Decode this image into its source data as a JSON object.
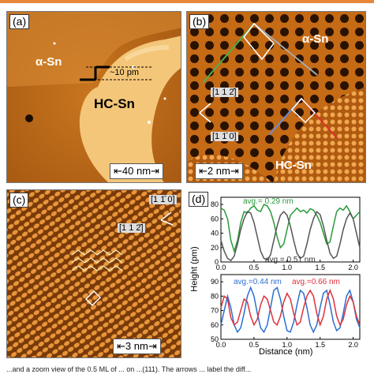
{
  "panel_a": {
    "label": "(a)",
    "region_left": "α-Sn",
    "region_center": "HC-Sn",
    "step_height": "~10 pm",
    "scale": "40 nm"
  },
  "panel_b": {
    "label": "(b)",
    "region_top": "α-Sn",
    "region_bottom": "HC-Sn",
    "dir1": "[1 1 2̄]",
    "dir2": "[1 1̄ 0]",
    "scale": "2 nm"
  },
  "panel_c": {
    "label": "(c)",
    "dir1": "[1 1̄ 0]",
    "dir2": "[1 1 2̄]",
    "scale": "3 nm"
  },
  "panel_d": {
    "label": "(d)",
    "ylabel": "Height (pm)",
    "xlabel": "Distance (nm)",
    "top_annot_green": "avg.= 0.29 nm",
    "top_annot_gray": "avg.= 0.51 nm",
    "bot_annot_blue": "avg.=0.44 nm",
    "bot_annot_red": "avg.=0.66 nm"
  },
  "caption_fragment": "...and a zoom view of the 0.5 ML of ... on ...(111). The arrows ... label the diff...",
  "colors": {
    "accent": "#e8873a",
    "green": "#2a9a3a",
    "gray": "#555555",
    "blue": "#2a6fd0",
    "red": "#e0303a"
  },
  "chart_data": [
    {
      "type": "line",
      "xlabel": "",
      "ylabel": "Height (pm)",
      "xlim": [
        0,
        2.1
      ],
      "ylim": [
        0,
        90
      ],
      "x_ticks": [
        0.0,
        0.5,
        1.0,
        1.5,
        2.0
      ],
      "y_ticks": [
        0,
        20,
        40,
        60,
        80
      ],
      "series": [
        {
          "color": "green",
          "x": [
            0,
            0.05,
            0.1,
            0.15,
            0.2,
            0.25,
            0.3,
            0.35,
            0.4,
            0.45,
            0.5,
            0.55,
            0.6,
            0.65,
            0.7,
            0.75,
            0.8,
            0.85,
            0.9,
            0.95,
            1.0,
            1.05,
            1.1,
            1.15,
            1.2,
            1.25,
            1.3,
            1.35,
            1.4,
            1.45,
            1.5,
            1.55,
            1.6,
            1.65,
            1.7,
            1.75,
            1.8,
            1.85,
            1.9,
            1.95,
            2.0,
            2.05,
            2.1
          ],
          "values": [
            75,
            72,
            60,
            30,
            15,
            30,
            55,
            70,
            68,
            75,
            78,
            72,
            70,
            80,
            78,
            70,
            55,
            35,
            20,
            25,
            45,
            65,
            70,
            75,
            70,
            72,
            68,
            74,
            72,
            65,
            55,
            40,
            25,
            28,
            50,
            70,
            75,
            72,
            78,
            70,
            60,
            65,
            70
          ]
        },
        {
          "color": "gray",
          "x": [
            0,
            0.05,
            0.1,
            0.15,
            0.2,
            0.25,
            0.3,
            0.35,
            0.4,
            0.45,
            0.5,
            0.55,
            0.6,
            0.65,
            0.7,
            0.75,
            0.8,
            0.85,
            0.9,
            0.95,
            1.0,
            1.05,
            1.1,
            1.15,
            1.2,
            1.25,
            1.3,
            1.35,
            1.4,
            1.45,
            1.5,
            1.55,
            1.6,
            1.65,
            1.7,
            1.75,
            1.8,
            1.85,
            1.9,
            1.95,
            2.0,
            2.05,
            2.1
          ],
          "values": [
            30,
            15,
            5,
            2,
            8,
            25,
            45,
            60,
            70,
            68,
            55,
            35,
            15,
            5,
            3,
            10,
            30,
            50,
            65,
            70,
            65,
            50,
            30,
            12,
            5,
            8,
            25,
            45,
            60,
            70,
            66,
            50,
            30,
            12,
            5,
            8,
            25,
            45,
            60,
            68,
            60,
            40,
            20
          ]
        }
      ]
    },
    {
      "type": "line",
      "xlabel": "Distance (nm)",
      "ylabel": "Height (pm)",
      "xlim": [
        0,
        2.1
      ],
      "ylim": [
        50,
        95
      ],
      "x_ticks": [
        0.0,
        0.5,
        1.0,
        1.5,
        2.0
      ],
      "y_ticks": [
        50,
        60,
        70,
        80,
        90
      ],
      "series": [
        {
          "color": "blue",
          "x": [
            0,
            0.05,
            0.1,
            0.15,
            0.2,
            0.25,
            0.3,
            0.35,
            0.4,
            0.45,
            0.5,
            0.55,
            0.6,
            0.65,
            0.7,
            0.75,
            0.8,
            0.85,
            0.9,
            0.95,
            1.0,
            1.05,
            1.1,
            1.15,
            1.2,
            1.25,
            1.3,
            1.35,
            1.4,
            1.45,
            1.5,
            1.55,
            1.6,
            1.65,
            1.7,
            1.75,
            1.8,
            1.85,
            1.9,
            1.95,
            2.0,
            2.05,
            2.1
          ],
          "values": [
            60,
            70,
            80,
            72,
            60,
            55,
            58,
            68,
            80,
            86,
            80,
            68,
            58,
            55,
            60,
            72,
            84,
            86,
            78,
            66,
            56,
            55,
            62,
            74,
            84,
            82,
            72,
            60,
            55,
            60,
            72,
            82,
            84,
            74,
            62,
            56,
            58,
            68,
            80,
            84,
            76,
            64,
            58
          ]
        },
        {
          "color": "red",
          "x": [
            0,
            0.05,
            0.1,
            0.15,
            0.2,
            0.25,
            0.3,
            0.35,
            0.4,
            0.45,
            0.5,
            0.55,
            0.6,
            0.65,
            0.7,
            0.75,
            0.8,
            0.85,
            0.9,
            0.95,
            1.0,
            1.05,
            1.1,
            1.15,
            1.2,
            1.25,
            1.3,
            1.35,
            1.4,
            1.45,
            1.5,
            1.55,
            1.6,
            1.65,
            1.7,
            1.75,
            1.8,
            1.85,
            1.9,
            1.95,
            2.0,
            2.05,
            2.1
          ],
          "values": [
            72,
            80,
            78,
            65,
            60,
            62,
            70,
            78,
            76,
            66,
            60,
            64,
            74,
            80,
            78,
            70,
            62,
            60,
            66,
            76,
            82,
            78,
            68,
            60,
            62,
            72,
            80,
            84,
            80,
            68,
            60,
            66,
            78,
            84,
            78,
            66,
            60,
            64,
            74,
            80,
            76,
            66,
            60
          ]
        }
      ]
    }
  ]
}
